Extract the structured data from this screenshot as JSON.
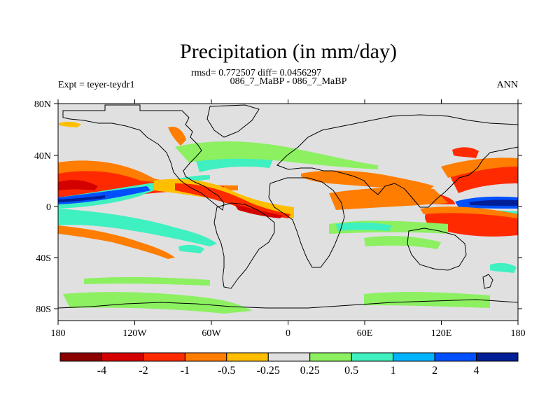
{
  "header": {
    "title": "Precipitation (in mm/day)",
    "stats": "rmsd= 0.772507 diff= 0.0456297",
    "cases": "086_7_MaBP - 086_7_MaBP",
    "expt": "Expt = teyer-teydr1",
    "season": "ANN"
  },
  "map_axes": {
    "lat_ticks": [
      "80N",
      "40N",
      "0",
      "40S",
      "80S"
    ],
    "lon_ticks": [
      "180",
      "120W",
      "60W",
      "0",
      "60E",
      "120E",
      "180"
    ]
  },
  "colorbar": {
    "colors": [
      "#8c0000",
      "#d40000",
      "#ff2a00",
      "#ff7d00",
      "#ffbf00",
      "#e0e0e0",
      "#8cf061",
      "#3ff0c0",
      "#00b4ff",
      "#0050ff",
      "#001e96"
    ],
    "labels": [
      "-4",
      "-2",
      "-1",
      "-0.5",
      "-0.25",
      "0.25",
      "0.5",
      "1",
      "2",
      "4"
    ]
  }
}
